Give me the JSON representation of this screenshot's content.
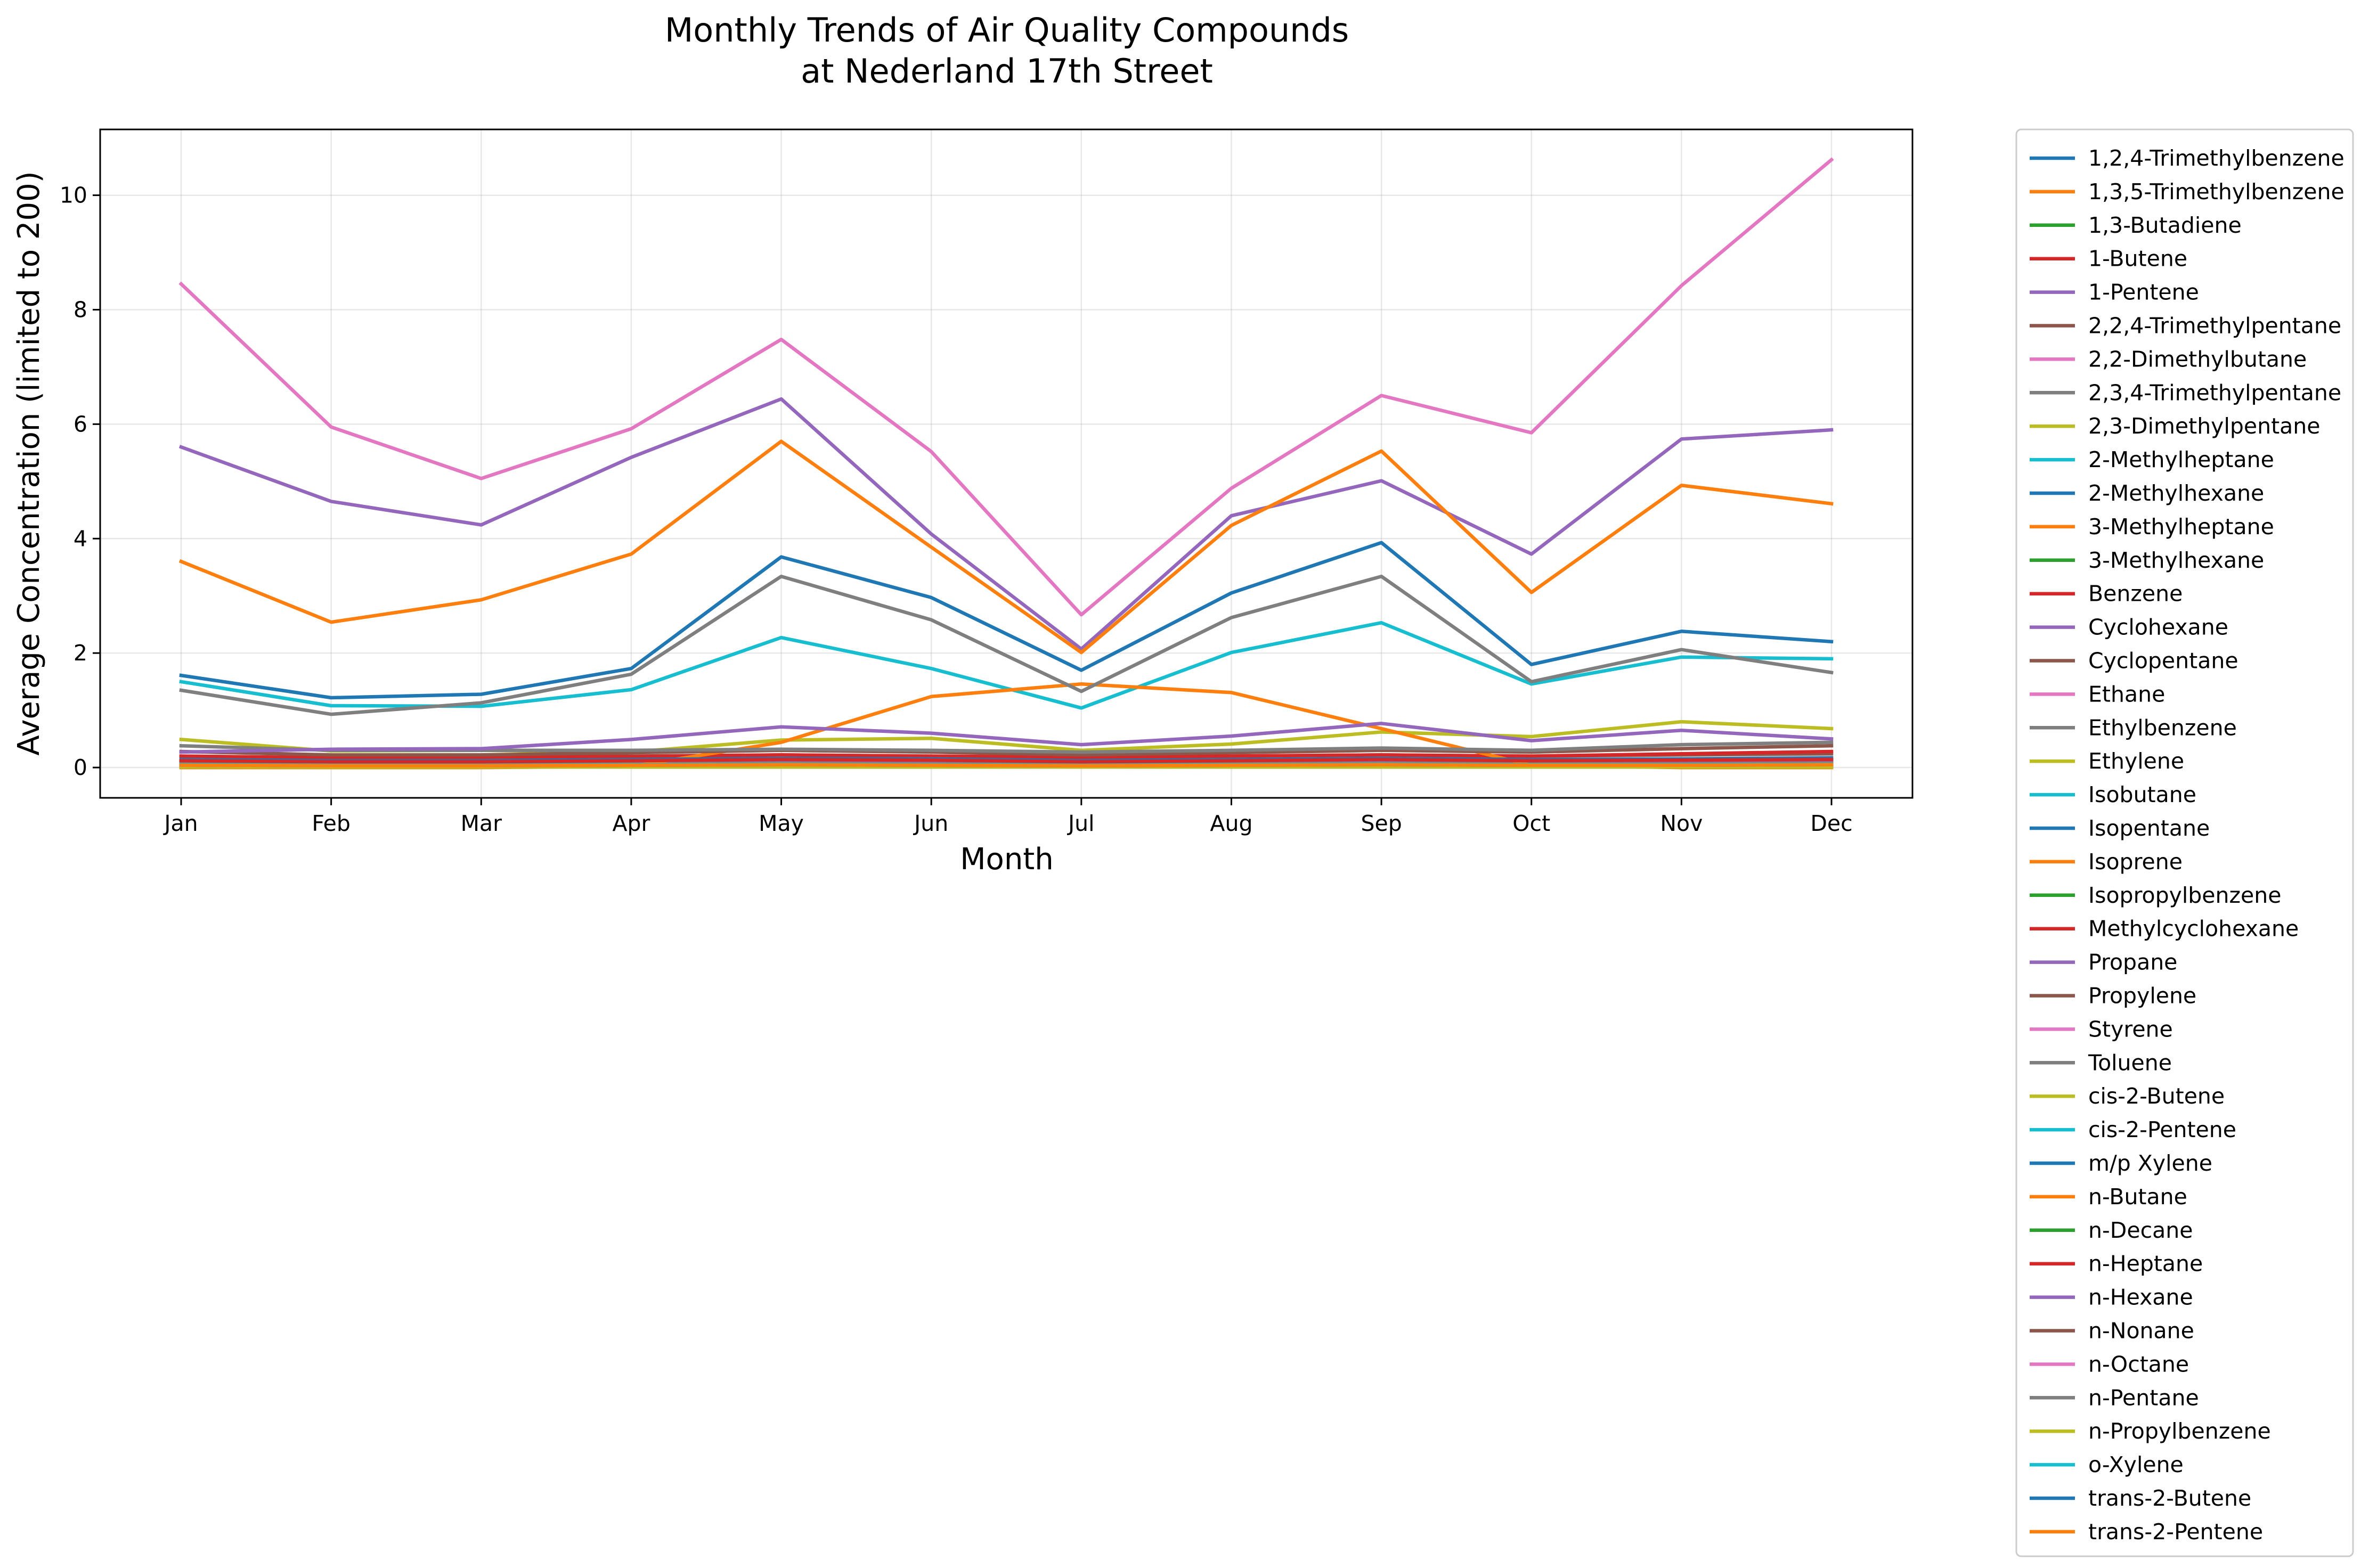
{
  "chart_data": {
    "type": "line",
    "title": [
      "Monthly Trends of Air Quality Compounds",
      "at Nederland 17th Street"
    ],
    "xlabel": "Month",
    "ylabel": "Average Concentration (limited to 200)",
    "categories": [
      "Jan",
      "Feb",
      "Mar",
      "Apr",
      "May",
      "Jun",
      "Jul",
      "Aug",
      "Sep",
      "Oct",
      "Nov",
      "Dec"
    ],
    "ylim": [
      -0.53,
      11.15
    ],
    "yticks": [
      0,
      2,
      4,
      6,
      8,
      10
    ],
    "grid": true,
    "legend_position": "outside-right",
    "series": [
      {
        "name": "1,2,4-Trimethylbenzene",
        "color": "#1f77b4",
        "values": [
          0.05,
          0.04,
          0.04,
          0.05,
          0.05,
          0.05,
          0.04,
          0.05,
          0.05,
          0.04,
          0.05,
          0.05
        ]
      },
      {
        "name": "1,3,5-Trimethylbenzene",
        "color": "#ff7f0e",
        "values": [
          0.02,
          0.02,
          0.02,
          0.02,
          0.02,
          0.02,
          0.02,
          0.02,
          0.02,
          0.02,
          0.02,
          0.02
        ]
      },
      {
        "name": "1,3-Butadiene",
        "color": "#2ca02c",
        "values": [
          0.03,
          0.03,
          0.03,
          0.03,
          0.03,
          0.03,
          0.03,
          0.03,
          0.03,
          0.03,
          0.03,
          0.03
        ]
      },
      {
        "name": "1-Butene",
        "color": "#d62728",
        "values": [
          0.12,
          0.1,
          0.1,
          0.12,
          0.14,
          0.13,
          0.1,
          0.12,
          0.14,
          0.12,
          0.13,
          0.14
        ]
      },
      {
        "name": "1-Pentene",
        "color": "#9467bd",
        "values": [
          0.06,
          0.05,
          0.05,
          0.06,
          0.07,
          0.06,
          0.05,
          0.06,
          0.07,
          0.06,
          0.06,
          0.07
        ]
      },
      {
        "name": "2,2,4-Trimethylpentane",
        "color": "#8c564b",
        "values": [
          0.2,
          0.17,
          0.18,
          0.2,
          0.22,
          0.2,
          0.17,
          0.2,
          0.22,
          0.2,
          0.22,
          0.24
        ]
      },
      {
        "name": "2,2-Dimethylbutane",
        "color": "#e377c2",
        "values": [
          0.08,
          0.07,
          0.07,
          0.08,
          0.09,
          0.08,
          0.07,
          0.08,
          0.09,
          0.08,
          0.09,
          0.1
        ]
      },
      {
        "name": "2,3,4-Trimethylpentane",
        "color": "#7f7f7f",
        "values": [
          0.06,
          0.05,
          0.05,
          0.06,
          0.07,
          0.06,
          0.05,
          0.06,
          0.07,
          0.06,
          0.06,
          0.07
        ]
      },
      {
        "name": "2,3-Dimethylpentane",
        "color": "#bcbd22",
        "values": [
          0.08,
          0.07,
          0.07,
          0.08,
          0.09,
          0.08,
          0.07,
          0.08,
          0.09,
          0.08,
          0.08,
          0.09
        ]
      },
      {
        "name": "2-Methylheptane",
        "color": "#17becf",
        "values": [
          0.04,
          0.03,
          0.03,
          0.04,
          0.05,
          0.04,
          0.03,
          0.04,
          0.05,
          0.04,
          0.04,
          0.05
        ]
      },
      {
        "name": "2-Methylhexane",
        "color": "#1f77b4",
        "values": [
          0.11,
          0.09,
          0.09,
          0.11,
          0.13,
          0.12,
          0.09,
          0.11,
          0.13,
          0.11,
          0.12,
          0.13
        ]
      },
      {
        "name": "3-Methylheptane",
        "color": "#ff7f0e",
        "values": [
          0.03,
          0.03,
          0.03,
          0.03,
          0.04,
          0.03,
          0.03,
          0.03,
          0.04,
          0.03,
          0.03,
          0.04
        ]
      },
      {
        "name": "3-Methylhexane",
        "color": "#2ca02c",
        "values": [
          0.1,
          0.09,
          0.09,
          0.1,
          0.12,
          0.11,
          0.09,
          0.1,
          0.12,
          0.1,
          0.11,
          0.12
        ]
      },
      {
        "name": "Benzene",
        "color": "#d62728",
        "values": [
          0.2,
          0.17,
          0.18,
          0.19,
          0.22,
          0.2,
          0.18,
          0.2,
          0.22,
          0.2,
          0.24,
          0.28
        ]
      },
      {
        "name": "Cyclohexane",
        "color": "#9467bd",
        "values": [
          0.09,
          0.08,
          0.08,
          0.09,
          0.1,
          0.09,
          0.08,
          0.09,
          0.1,
          0.09,
          0.1,
          0.1
        ]
      },
      {
        "name": "Cyclopentane",
        "color": "#8c564b",
        "values": [
          0.04,
          0.03,
          0.03,
          0.04,
          0.05,
          0.04,
          0.03,
          0.04,
          0.05,
          0.04,
          0.04,
          0.05
        ]
      },
      {
        "name": "Ethane",
        "color": "#e377c2",
        "values": [
          8.45,
          5.95,
          5.05,
          5.92,
          7.48,
          5.52,
          2.67,
          4.88,
          6.5,
          5.85,
          8.42,
          10.62
        ]
      },
      {
        "name": "Ethylbenzene",
        "color": "#7f7f7f",
        "values": [
          0.06,
          0.05,
          0.05,
          0.06,
          0.07,
          0.06,
          0.05,
          0.06,
          0.07,
          0.06,
          0.06,
          0.07
        ]
      },
      {
        "name": "Ethylene",
        "color": "#bcbd22",
        "values": [
          0.49,
          0.29,
          0.3,
          0.27,
          0.48,
          0.51,
          0.3,
          0.41,
          0.62,
          0.54,
          0.8,
          0.68
        ]
      },
      {
        "name": "Isobutane",
        "color": "#17becf",
        "values": [
          1.5,
          1.08,
          1.07,
          1.36,
          2.27,
          1.73,
          1.04,
          2.01,
          2.53,
          1.46,
          1.93,
          1.9
        ]
      },
      {
        "name": "Isopentane",
        "color": "#1f77b4",
        "values": [
          1.61,
          1.22,
          1.28,
          1.73,
          3.68,
          2.97,
          1.7,
          3.05,
          3.93,
          1.8,
          2.38,
          2.2
        ]
      },
      {
        "name": "Isoprene",
        "color": "#ff7f0e",
        "values": [
          0.0,
          0.0,
          0.0,
          0.02,
          0.44,
          1.24,
          1.46,
          1.31,
          0.68,
          0.04,
          0.0,
          0.0
        ]
      },
      {
        "name": "Isopropylbenzene",
        "color": "#2ca02c",
        "values": [
          0.01,
          0.01,
          0.01,
          0.01,
          0.01,
          0.01,
          0.01,
          0.01,
          0.01,
          0.01,
          0.01,
          0.01
        ]
      },
      {
        "name": "Methylcyclohexane",
        "color": "#d62728",
        "values": [
          0.13,
          0.11,
          0.11,
          0.13,
          0.15,
          0.14,
          0.11,
          0.13,
          0.15,
          0.13,
          0.14,
          0.16
        ]
      },
      {
        "name": "Propane",
        "color": "#9467bd",
        "values": [
          5.6,
          4.65,
          4.24,
          5.42,
          6.44,
          4.08,
          2.07,
          4.4,
          5.01,
          3.73,
          5.74,
          5.9
        ]
      },
      {
        "name": "Propylene",
        "color": "#8c564b",
        "values": [
          0.28,
          0.22,
          0.22,
          0.26,
          0.3,
          0.27,
          0.22,
          0.26,
          0.3,
          0.27,
          0.33,
          0.38
        ]
      },
      {
        "name": "Styrene",
        "color": "#e377c2",
        "values": [
          0.03,
          0.02,
          0.02,
          0.03,
          0.03,
          0.03,
          0.02,
          0.03,
          0.03,
          0.03,
          0.03,
          0.03
        ]
      },
      {
        "name": "Toluene",
        "color": "#7f7f7f",
        "values": [
          0.38,
          0.3,
          0.3,
          0.3,
          0.32,
          0.3,
          0.27,
          0.3,
          0.34,
          0.3,
          0.4,
          0.44
        ]
      },
      {
        "name": "cis-2-Butene",
        "color": "#bcbd22",
        "values": [
          0.04,
          0.03,
          0.03,
          0.04,
          0.05,
          0.04,
          0.03,
          0.04,
          0.05,
          0.04,
          0.04,
          0.05
        ]
      },
      {
        "name": "cis-2-Pentene",
        "color": "#17becf",
        "values": [
          0.03,
          0.02,
          0.02,
          0.03,
          0.03,
          0.03,
          0.02,
          0.03,
          0.03,
          0.03,
          0.03,
          0.03
        ]
      },
      {
        "name": "m/p Xylene",
        "color": "#1f77b4",
        "values": [
          0.14,
          0.12,
          0.12,
          0.14,
          0.16,
          0.15,
          0.12,
          0.14,
          0.16,
          0.14,
          0.15,
          0.17
        ]
      },
      {
        "name": "n-Butane",
        "color": "#ff7f0e",
        "values": [
          3.6,
          2.54,
          2.93,
          3.73,
          5.7,
          3.85,
          2.01,
          4.23,
          5.53,
          3.06,
          4.93,
          4.61
        ]
      },
      {
        "name": "n-Decane",
        "color": "#2ca02c",
        "values": [
          0.03,
          0.03,
          0.03,
          0.03,
          0.03,
          0.03,
          0.03,
          0.03,
          0.03,
          0.03,
          0.03,
          0.03
        ]
      },
      {
        "name": "n-Heptane",
        "color": "#d62728",
        "values": [
          0.12,
          0.1,
          0.1,
          0.12,
          0.14,
          0.13,
          0.1,
          0.12,
          0.14,
          0.12,
          0.13,
          0.14
        ]
      },
      {
        "name": "n-Hexane",
        "color": "#9467bd",
        "values": [
          0.27,
          0.32,
          0.33,
          0.49,
          0.71,
          0.6,
          0.4,
          0.55,
          0.77,
          0.47,
          0.65,
          0.5
        ]
      },
      {
        "name": "n-Nonane",
        "color": "#8c564b",
        "values": [
          0.03,
          0.03,
          0.03,
          0.03,
          0.04,
          0.03,
          0.03,
          0.03,
          0.04,
          0.03,
          0.03,
          0.04
        ]
      },
      {
        "name": "n-Octane",
        "color": "#e377c2",
        "values": [
          0.04,
          0.03,
          0.03,
          0.04,
          0.05,
          0.04,
          0.03,
          0.04,
          0.05,
          0.04,
          0.04,
          0.05
        ]
      },
      {
        "name": "n-Pentane",
        "color": "#7f7f7f",
        "values": [
          1.35,
          0.93,
          1.13,
          1.63,
          3.34,
          2.58,
          1.33,
          2.62,
          3.34,
          1.5,
          2.06,
          1.66
        ]
      },
      {
        "name": "n-Propylbenzene",
        "color": "#bcbd22",
        "values": [
          0.01,
          0.01,
          0.01,
          0.01,
          0.01,
          0.01,
          0.01,
          0.01,
          0.01,
          0.01,
          0.01,
          0.01
        ]
      },
      {
        "name": "o-Xylene",
        "color": "#17becf",
        "values": [
          0.05,
          0.04,
          0.04,
          0.05,
          0.06,
          0.05,
          0.04,
          0.05,
          0.06,
          0.05,
          0.05,
          0.06
        ]
      },
      {
        "name": "trans-2-Butene",
        "color": "#1f77b4",
        "values": [
          0.04,
          0.03,
          0.03,
          0.04,
          0.05,
          0.04,
          0.03,
          0.04,
          0.05,
          0.04,
          0.04,
          0.05
        ]
      },
      {
        "name": "trans-2-Pentene",
        "color": "#ff7f0e",
        "values": [
          0.04,
          0.03,
          0.03,
          0.04,
          0.05,
          0.04,
          0.03,
          0.04,
          0.05,
          0.04,
          0.04,
          0.05
        ]
      }
    ]
  }
}
